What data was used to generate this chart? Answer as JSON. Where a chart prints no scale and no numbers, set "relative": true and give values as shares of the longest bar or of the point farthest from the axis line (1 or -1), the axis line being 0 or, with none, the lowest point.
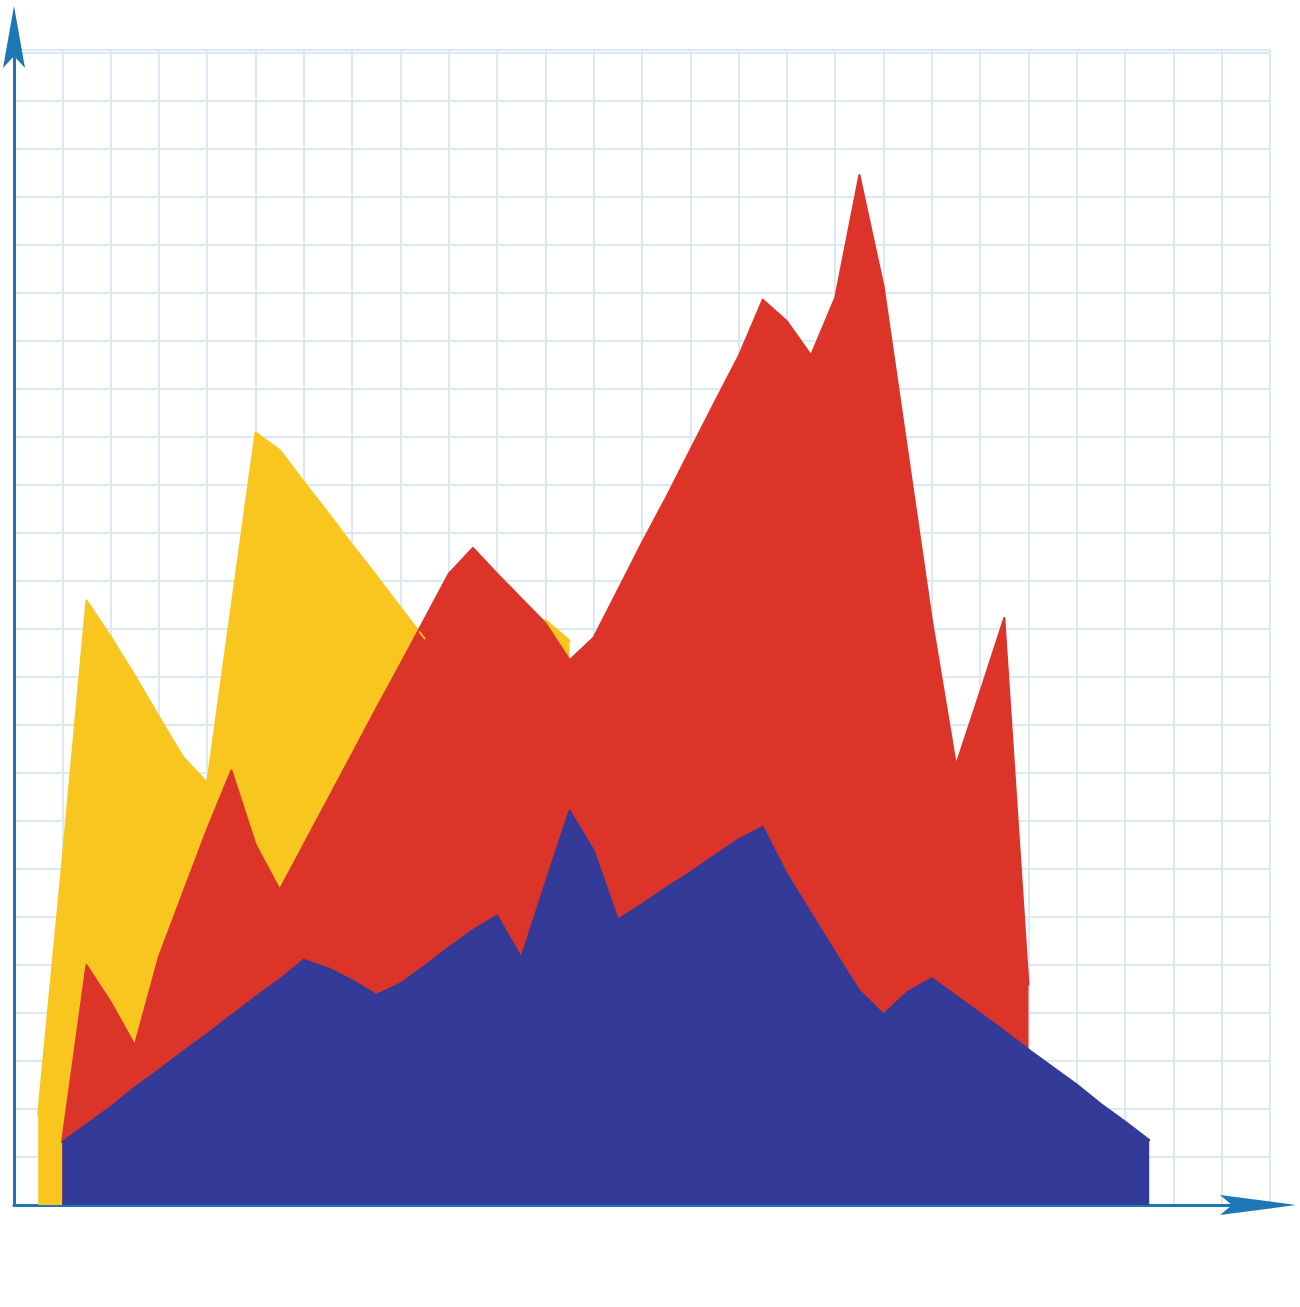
{
  "chart_data": {
    "type": "area",
    "relative": true,
    "grid": true,
    "categories": [
      null,
      null,
      null,
      null,
      null,
      null,
      null,
      null,
      null,
      null,
      null,
      null,
      null,
      null,
      null,
      null,
      null,
      null,
      null,
      null,
      null,
      null,
      null,
      null,
      null,
      null,
      null,
      null,
      null,
      null,
      null,
      null,
      null,
      null,
      null,
      null,
      null,
      null,
      null,
      null,
      null,
      null,
      null,
      null,
      null,
      null,
      null,
      null,
      null,
      null,
      null,
      null,
      null
    ],
    "series": [
      {
        "color": "#f8c61f",
        "values": [
          null,
          0.088,
          0.333,
          0.587,
          0.552,
          0.514,
          0.474,
          0.435,
          0.41,
          0.58,
          0.75,
          0.733,
          0.702,
          0.672,
          0.641,
          0.611,
          0.58,
          0.55,
          null,
          null,
          null,
          null,
          0.568,
          0.548,
          null,
          null,
          null,
          null,
          null,
          null,
          null,
          null,
          null,
          null,
          null,
          null,
          null,
          null,
          null,
          null,
          null,
          null,
          null,
          null,
          null,
          null,
          null,
          null,
          null,
          null,
          null,
          null,
          null
        ]
      },
      {
        "color": "#dd3429",
        "values": [
          null,
          null,
          0.063,
          0.233,
          0.197,
          0.155,
          0.241,
          0.303,
          0.365,
          0.422,
          0.35,
          0.306,
          0.35,
          0.394,
          0.438,
          0.482,
          0.525,
          0.569,
          0.613,
          0.638,
          0.613,
          0.589,
          0.565,
          0.529,
          0.551,
          0.597,
          0.643,
          0.687,
          0.733,
          0.779,
          0.824,
          0.879,
          0.858,
          0.825,
          0.881,
          1,
          0.892,
          0.73,
          0.568,
          0.427,
          0.498,
          0.57,
          0.214,
          null,
          null,
          null,
          null,
          null,
          null,
          null,
          null,
          null,
          null
        ]
      },
      {
        "color": "#333a97",
        "values": [
          null,
          null,
          0.061,
          0.078,
          0.095,
          0.114,
          0.131,
          0.149,
          0.166,
          0.184,
          0.202,
          0.219,
          0.238,
          0.23,
          0.218,
          0.204,
          0.215,
          0.232,
          0.25,
          0.267,
          0.281,
          0.24,
          0.312,
          0.383,
          0.344,
          0.277,
          0.292,
          0.308,
          0.323,
          0.339,
          0.355,
          0.367,
          0.321,
          0.283,
          0.245,
          0.208,
          0.185,
          0.207,
          0.22,
          0.203,
          0.186,
          0.169,
          0.151,
          0.134,
          0.117,
          0.098,
          0.081,
          0.063,
          null,
          null,
          null,
          null,
          null
        ]
      }
    ]
  }
}
